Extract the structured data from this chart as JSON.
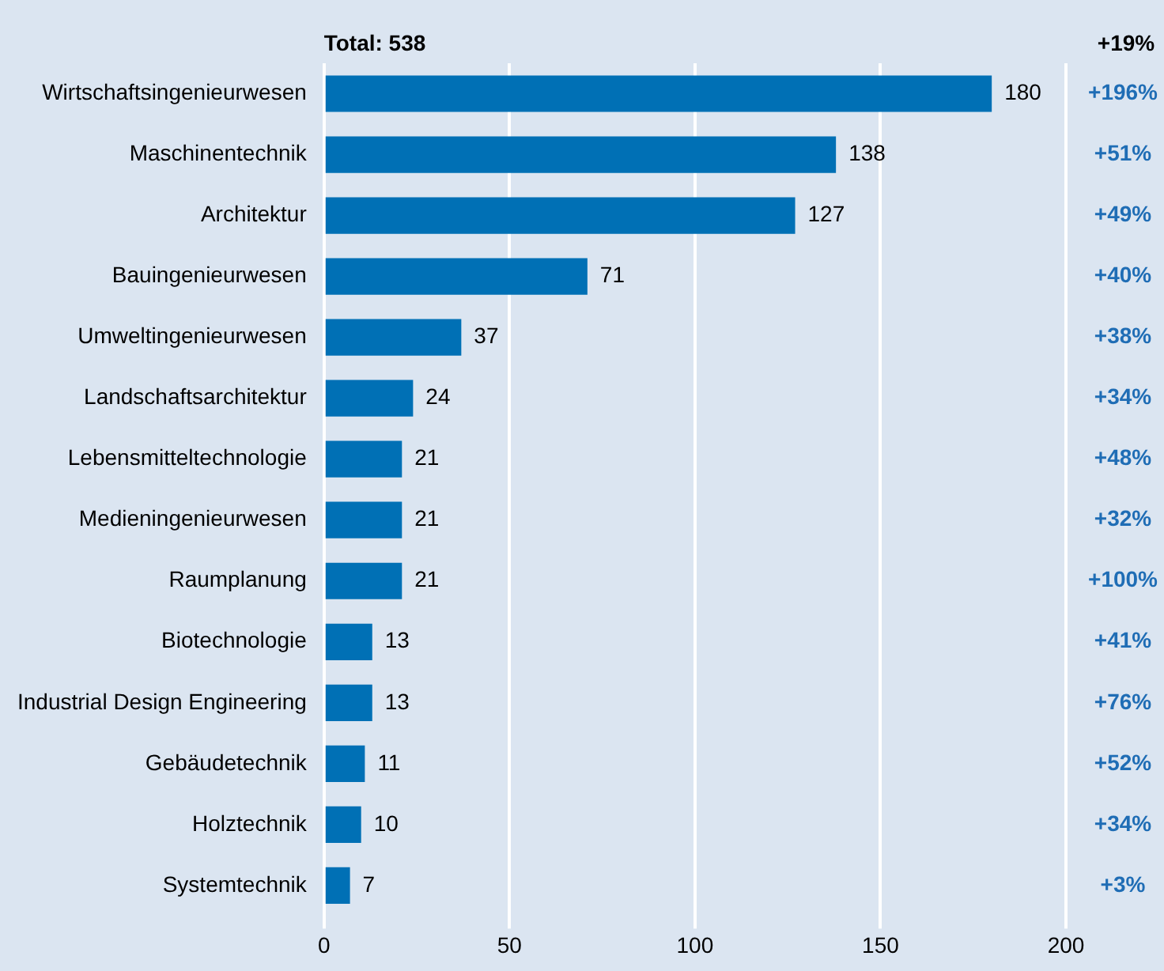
{
  "chart_data": {
    "type": "bar",
    "orientation": "horizontal",
    "categories": [
      "Wirtschaftsingenieurwesen",
      "Maschinentechnik",
      "Architektur",
      "Bauingenieurwesen",
      "Umweltingenieurwesen",
      "Landschaftsarchitektur",
      "Lebensmitteltechnologie",
      "Medieningenieurwesen",
      "Raumplanung",
      "Biotechnologie",
      "Industrial Design Engineering",
      "Gebäudetechnik",
      "Holztechnik",
      "Systemtechnik"
    ],
    "values": [
      180,
      138,
      127,
      71,
      37,
      24,
      21,
      21,
      21,
      13,
      13,
      11,
      10,
      7
    ],
    "color": "#0070b5",
    "xlim": [
      0,
      200
    ],
    "xticks": [
      0,
      50,
      100,
      150,
      200
    ],
    "grid": "x",
    "legend": false,
    "data_labels": true,
    "annotations": [
      "Total: 538",
      "+19%",
      "+196%",
      "+51%",
      "+49%",
      "+40%",
      "+38%",
      "+34%",
      "+48%",
      "+32%",
      "+100%",
      "+41%",
      "+76%",
      "+52%",
      "+34%",
      "+3%"
    ]
  }
}
